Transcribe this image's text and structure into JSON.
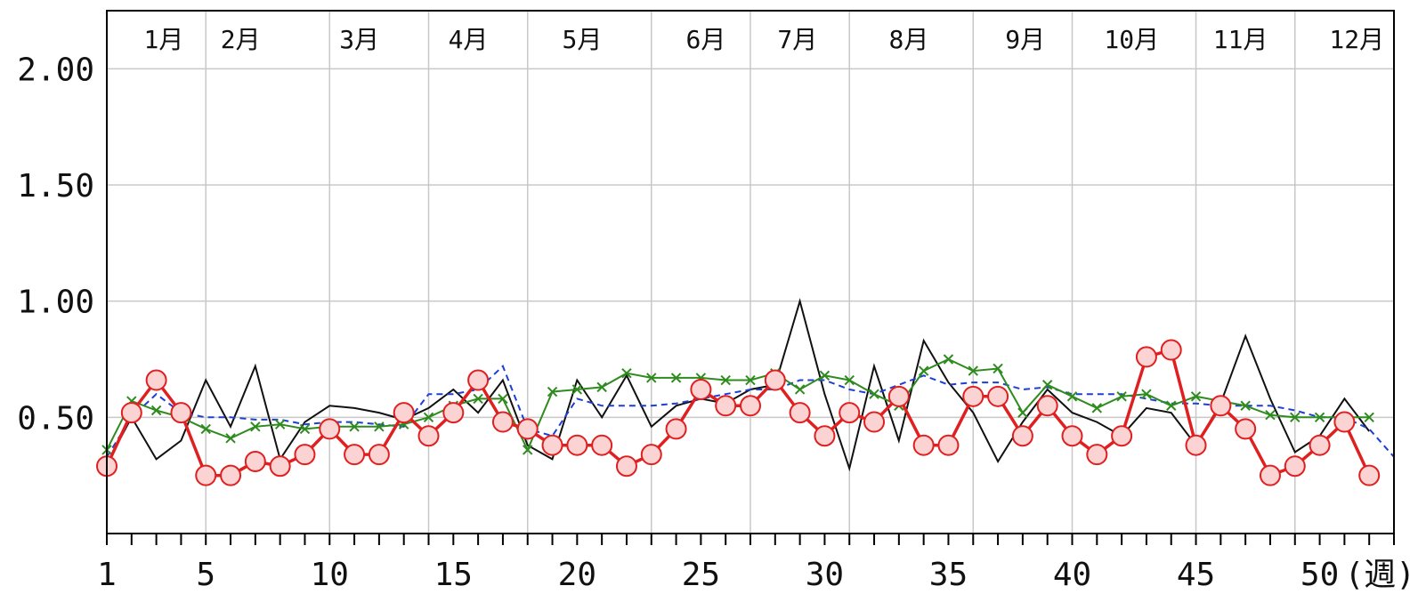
{
  "chart_data": {
    "type": "line",
    "xlabel": "",
    "ylabel": "",
    "x_unit": "(週)",
    "xlim": [
      1,
      53
    ],
    "ylim": [
      0,
      2.25
    ],
    "grid": true,
    "y_ticks": [
      {
        "value": 0.5,
        "label": "0.50"
      },
      {
        "value": 1.0,
        "label": "1.00"
      },
      {
        "value": 1.5,
        "label": "1.50"
      },
      {
        "value": 2.0,
        "label": "2.00"
      }
    ],
    "x_ticks": [
      {
        "value": 1,
        "label": "1"
      },
      {
        "value": 5,
        "label": "5"
      },
      {
        "value": 10,
        "label": "10"
      },
      {
        "value": 15,
        "label": "15"
      },
      {
        "value": 20,
        "label": "20"
      },
      {
        "value": 25,
        "label": "25"
      },
      {
        "value": 30,
        "label": "30"
      },
      {
        "value": 35,
        "label": "35"
      },
      {
        "value": 40,
        "label": "40"
      },
      {
        "value": 45,
        "label": "45"
      },
      {
        "value": 50,
        "label": "50"
      }
    ],
    "month_boundaries": [
      5,
      10,
      14,
      18,
      23,
      27,
      31,
      36,
      40,
      45,
      49
    ],
    "months": [
      {
        "label": "1月",
        "week": 3.3
      },
      {
        "label": "2月",
        "week": 6.4
      },
      {
        "label": "3月",
        "week": 11.2
      },
      {
        "label": "4月",
        "week": 15.6
      },
      {
        "label": "5月",
        "week": 20.2
      },
      {
        "label": "6月",
        "week": 25.2
      },
      {
        "label": "7月",
        "week": 28.9
      },
      {
        "label": "8月",
        "week": 33.4
      },
      {
        "label": "9月",
        "week": 38.1
      },
      {
        "label": "10月",
        "week": 42.4
      },
      {
        "label": "11月",
        "week": 46.8
      },
      {
        "label": "12月",
        "week": 51.5
      }
    ],
    "series": [
      {
        "color": "#111111",
        "style": "solid",
        "marker": "none",
        "x": [
          1,
          2,
          3,
          4,
          5,
          6,
          7,
          8,
          9,
          10,
          11,
          12,
          13,
          14,
          15,
          16,
          17,
          18,
          19,
          20,
          21,
          22,
          23,
          24,
          25,
          26,
          27,
          28,
          29,
          30,
          31,
          32,
          33,
          34,
          35,
          36,
          37,
          38,
          39,
          40,
          41,
          42,
          43,
          44,
          45,
          46,
          47,
          48,
          49,
          50,
          51,
          52
        ],
        "values": [
          0.3,
          0.5,
          0.32,
          0.4,
          0.66,
          0.46,
          0.72,
          0.32,
          0.48,
          0.55,
          0.54,
          0.52,
          0.49,
          0.54,
          0.62,
          0.52,
          0.66,
          0.38,
          0.32,
          0.66,
          0.5,
          0.68,
          0.46,
          0.55,
          0.58,
          0.56,
          0.62,
          0.64,
          1.0,
          0.6,
          0.28,
          0.72,
          0.4,
          0.83,
          0.65,
          0.52,
          0.31,
          0.48,
          0.62,
          0.52,
          0.48,
          0.42,
          0.54,
          0.52,
          0.38,
          0.56,
          0.85,
          0.58,
          0.35,
          0.42,
          0.58,
          0.44
        ]
      },
      {
        "color": "#1f3fd4",
        "style": "dashed",
        "marker": "none",
        "x": [
          1,
          2,
          3,
          4,
          5,
          6,
          7,
          8,
          9,
          10,
          11,
          12,
          13,
          14,
          15,
          16,
          17,
          18,
          19,
          20,
          21,
          22,
          23,
          24,
          25,
          26,
          27,
          28,
          29,
          30,
          31,
          32,
          33,
          34,
          35,
          36,
          37,
          38,
          39,
          40,
          41,
          42,
          43,
          44,
          45,
          46,
          47,
          48,
          49,
          50,
          51,
          52,
          53
        ],
        "values": [
          0.33,
          0.5,
          0.6,
          0.52,
          0.5,
          0.5,
          0.49,
          0.49,
          0.47,
          0.48,
          0.48,
          0.47,
          0.46,
          0.6,
          0.6,
          0.62,
          0.72,
          0.45,
          0.42,
          0.58,
          0.55,
          0.55,
          0.55,
          0.56,
          0.58,
          0.6,
          0.62,
          0.62,
          0.66,
          0.66,
          0.62,
          0.6,
          0.64,
          0.68,
          0.64,
          0.65,
          0.65,
          0.62,
          0.63,
          0.6,
          0.6,
          0.6,
          0.58,
          0.56,
          0.56,
          0.55,
          0.55,
          0.55,
          0.53,
          0.5,
          0.5,
          0.45,
          0.33
        ]
      },
      {
        "color": "#2e8b1e",
        "style": "solid",
        "marker": "cross",
        "x": [
          1,
          2,
          3,
          4,
          5,
          6,
          7,
          8,
          9,
          10,
          11,
          12,
          13,
          14,
          15,
          16,
          17,
          18,
          19,
          20,
          21,
          22,
          23,
          24,
          25,
          26,
          27,
          28,
          29,
          30,
          31,
          32,
          33,
          34,
          35,
          36,
          37,
          38,
          39,
          40,
          41,
          42,
          43,
          44,
          45,
          46,
          47,
          48,
          49,
          50,
          51,
          52
        ],
        "values": [
          0.36,
          0.57,
          0.53,
          0.5,
          0.45,
          0.41,
          0.46,
          0.47,
          0.45,
          0.46,
          0.46,
          0.46,
          0.47,
          0.5,
          0.55,
          0.58,
          0.58,
          0.36,
          0.61,
          0.62,
          0.63,
          0.69,
          0.67,
          0.67,
          0.67,
          0.66,
          0.66,
          0.69,
          0.62,
          0.68,
          0.66,
          0.6,
          0.55,
          0.7,
          0.75,
          0.7,
          0.71,
          0.52,
          0.64,
          0.59,
          0.54,
          0.59,
          0.6,
          0.55,
          0.59,
          0.57,
          0.55,
          0.51,
          0.5,
          0.5,
          0.5,
          0.5
        ]
      },
      {
        "color": "#e02020",
        "style": "solid",
        "marker": "circle",
        "x": [
          1,
          2,
          3,
          4,
          5,
          6,
          7,
          8,
          9,
          10,
          11,
          12,
          13,
          14,
          15,
          16,
          17,
          18,
          19,
          20,
          21,
          22,
          23,
          24,
          25,
          26,
          27,
          28,
          29,
          30,
          31,
          32,
          33,
          34,
          35,
          36,
          37,
          38,
          39,
          40,
          41,
          42,
          43,
          44,
          45,
          46,
          47,
          48,
          49,
          50,
          51,
          52
        ],
        "values": [
          0.29,
          0.52,
          0.66,
          0.52,
          0.25,
          0.25,
          0.31,
          0.29,
          0.34,
          0.45,
          0.34,
          0.34,
          0.52,
          0.42,
          0.52,
          0.66,
          0.48,
          0.45,
          0.38,
          0.38,
          0.38,
          0.29,
          0.34,
          0.45,
          0.62,
          0.55,
          0.55,
          0.66,
          0.52,
          0.42,
          0.52,
          0.48,
          0.59,
          0.38,
          0.38,
          0.59,
          0.59,
          0.42,
          0.55,
          0.42,
          0.34,
          0.42,
          0.76,
          0.79,
          0.38,
          0.55,
          0.45,
          0.25,
          0.29,
          0.38,
          0.48,
          0.25
        ]
      }
    ]
  }
}
